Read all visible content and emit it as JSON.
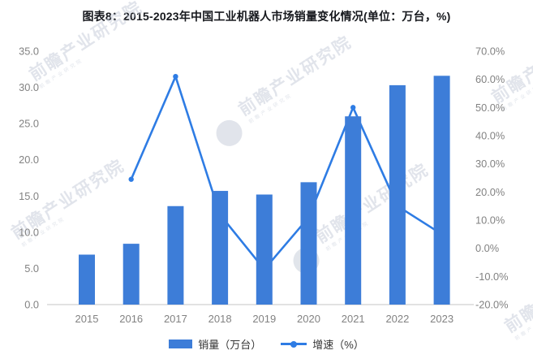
{
  "watermark": {
    "text": "前瞻产业研究院"
  },
  "colors": {
    "bar": "#3D7DD8",
    "line": "#2E7CE4",
    "axis_text": "#828282",
    "axis_line": "#D9D9D9",
    "title_text": "#16181D",
    "legend_text": "#333333",
    "watermark": "#C4CBD8"
  },
  "chart_data": {
    "type": "combo",
    "title": "图表8：2015-2023年中国工业机器人市场销量变化情况(单位：万台，%)",
    "categories": [
      "2015",
      "2016",
      "2017",
      "2018",
      "2019",
      "2020",
      "2021",
      "2022",
      "2023"
    ],
    "series": [
      {
        "name": "销量（万台）",
        "type": "bar",
        "axis": "left",
        "values": [
          6.9,
          8.4,
          13.6,
          15.7,
          15.2,
          16.9,
          26.0,
          30.3,
          31.6
        ]
      },
      {
        "name": "增速（%）",
        "type": "line",
        "axis": "right",
        "values": [
          null,
          24.5,
          61.0,
          12.0,
          -7.5,
          11.0,
          50.0,
          15.0,
          5.0
        ]
      }
    ],
    "left_axis": {
      "min": 0,
      "max": 35,
      "step": 5,
      "tick_format": "one-decimal"
    },
    "right_axis": {
      "min": -20,
      "max": 70,
      "step": 10,
      "tick_format": "one-decimal-percent"
    },
    "legend_position": "bottom",
    "grid": false,
    "bars_drawn_over_line": true
  }
}
